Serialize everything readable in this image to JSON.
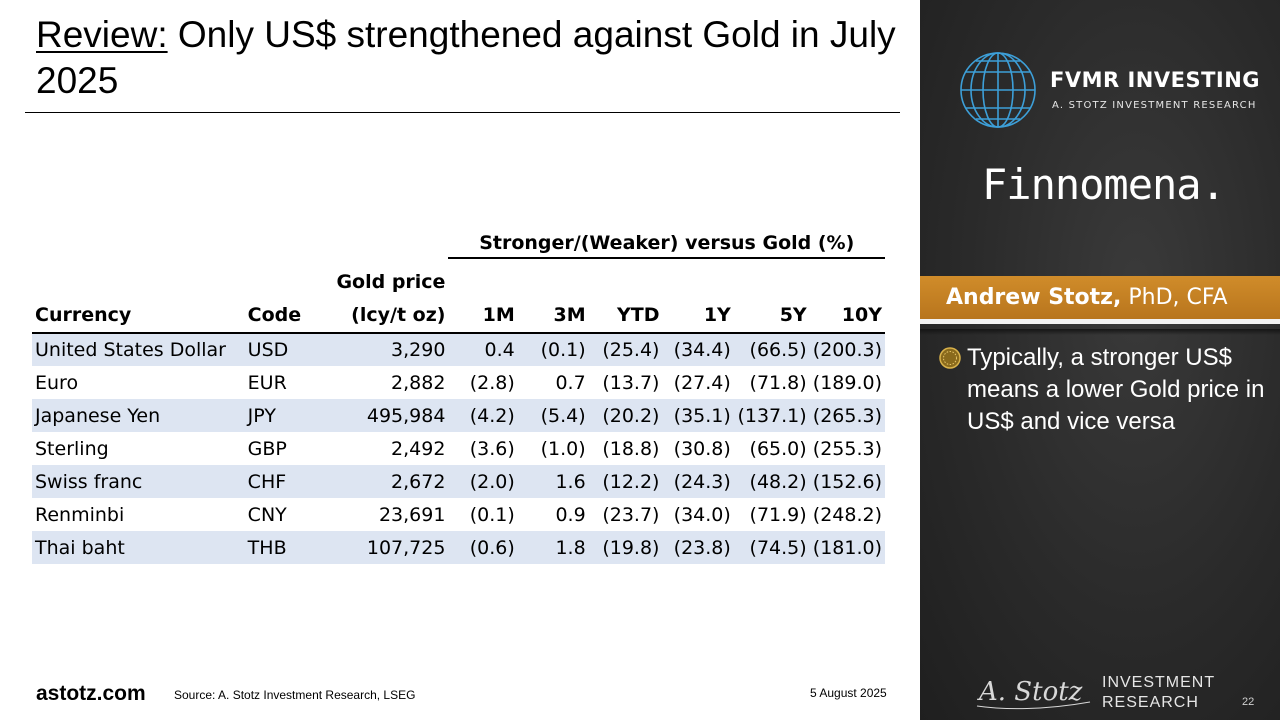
{
  "slide": {
    "title_prefix": "Review:",
    "title_main": " Only US$ strengthened against Gold in July 2025"
  },
  "table": {
    "group_header": "Stronger/(Weaker) versus Gold (%)",
    "headers": {
      "currency": "Currency",
      "code": "Code",
      "gold_line1": "Gold price",
      "gold_line2": "(lcy/t oz)",
      "m1": "1M",
      "m3": "3M",
      "ytd": "YTD",
      "y1": "1Y",
      "y5": "5Y",
      "y10": "10Y"
    },
    "rows": [
      {
        "currency": "United States Dollar",
        "code": "USD",
        "gold": "3,290",
        "m1": "0.4",
        "m3": "(0.1)",
        "ytd": "(25.4)",
        "y1": "(34.4)",
        "y5": "(66.5)",
        "y10": "(200.3)"
      },
      {
        "currency": "Euro",
        "code": "EUR",
        "gold": "2,882",
        "m1": "(2.8)",
        "m3": "0.7",
        "ytd": "(13.7)",
        "y1": "(27.4)",
        "y5": "(71.8)",
        "y10": "(189.0)"
      },
      {
        "currency": "Japanese Yen",
        "code": "JPY",
        "gold": "495,984",
        "m1": "(4.2)",
        "m3": "(5.4)",
        "ytd": "(20.2)",
        "y1": "(35.1)",
        "y5": "(137.1)",
        "y10": "(265.3)"
      },
      {
        "currency": "Sterling",
        "code": "GBP",
        "gold": "2,492",
        "m1": "(3.6)",
        "m3": "(1.0)",
        "ytd": "(18.8)",
        "y1": "(30.8)",
        "y5": "(65.0)",
        "y10": "(255.3)"
      },
      {
        "currency": "Swiss franc",
        "code": "CHF",
        "gold": "2,672",
        "m1": "(2.0)",
        "m3": "1.6",
        "ytd": "(12.2)",
        "y1": "(24.3)",
        "y5": "(48.2)",
        "y10": "(152.6)"
      },
      {
        "currency": "Renminbi",
        "code": "CNY",
        "gold": "23,691",
        "m1": "(0.1)",
        "m3": "0.9",
        "ytd": "(23.7)",
        "y1": "(34.0)",
        "y5": "(71.9)",
        "y10": "(248.2)"
      },
      {
        "currency": "Thai baht",
        "code": "THB",
        "gold": "107,725",
        "m1": "(0.6)",
        "m3": "1.8",
        "ytd": "(19.8)",
        "y1": "(23.8)",
        "y5": "(74.5)",
        "y10": "(181.0)"
      }
    ]
  },
  "footer": {
    "site": "astotz.com",
    "source": "Source: A. Stotz Investment Research, LSEG",
    "date": "5 August 2025"
  },
  "sidebar": {
    "brand_name": "FVMR INVESTING",
    "brand_sub": "A. STOTZ INVESTMENT RESEARCH",
    "partner": "Finnomena.",
    "presenter_name": "Andrew Stotz,",
    "presenter_credentials": "PhD, CFA",
    "bullet_icon": "bullet-coin-icon",
    "bullet_text": "Typically, a stronger US$ means a lower Gold price in US$ and vice versa",
    "signature_text": "A. Stotz",
    "ir_line1": "INVESTMENT",
    "ir_line2": "RESEARCH",
    "page_number": "22"
  },
  "colors": {
    "row_shade": "#dde5f2",
    "sidebar_bg": "#2a2a2a",
    "name_band": "#c6821f",
    "globe": "#3d9fd8"
  }
}
